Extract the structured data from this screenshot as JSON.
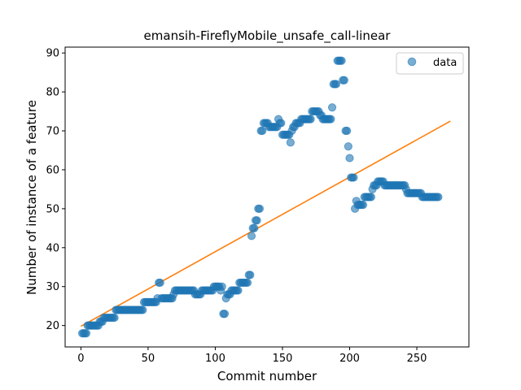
{
  "chart_data": {
    "type": "scatter",
    "title": "emansih-FireflyMobile_unsafe_call-linear",
    "xlabel": "Commit number",
    "ylabel": "Number of instance of a feature",
    "xlim": [
      -11.75,
      288.75
    ],
    "ylim": [
      14.5,
      91.5
    ],
    "xticks": [
      0,
      50,
      100,
      150,
      200,
      250
    ],
    "yticks": [
      20,
      30,
      40,
      50,
      60,
      70,
      80,
      90
    ],
    "grid": false,
    "legend": {
      "placement": "top-right",
      "entries": [
        "data"
      ]
    },
    "colors": {
      "scatter": "#1f77b4",
      "fit": "#ff7f0e"
    },
    "series": [
      {
        "name": "data",
        "kind": "scatter",
        "points": [
          [
            1,
            18
          ],
          [
            2,
            18
          ],
          [
            3,
            18
          ],
          [
            4,
            18
          ],
          [
            5,
            20
          ],
          [
            6,
            20
          ],
          [
            7,
            20
          ],
          [
            8,
            20
          ],
          [
            9,
            20
          ],
          [
            10,
            20
          ],
          [
            11,
            20
          ],
          [
            12,
            20
          ],
          [
            13,
            20
          ],
          [
            14,
            21
          ],
          [
            15,
            21
          ],
          [
            16,
            21
          ],
          [
            17,
            22
          ],
          [
            18,
            22
          ],
          [
            19,
            22
          ],
          [
            20,
            22
          ],
          [
            21,
            22
          ],
          [
            22,
            22
          ],
          [
            23,
            22
          ],
          [
            24,
            22
          ],
          [
            25,
            22
          ],
          [
            26,
            24
          ],
          [
            27,
            24
          ],
          [
            28,
            24
          ],
          [
            29,
            24
          ],
          [
            30,
            24
          ],
          [
            31,
            24
          ],
          [
            32,
            24
          ],
          [
            33,
            24
          ],
          [
            34,
            24
          ],
          [
            35,
            24
          ],
          [
            36,
            24
          ],
          [
            37,
            24
          ],
          [
            38,
            24
          ],
          [
            39,
            24
          ],
          [
            40,
            24
          ],
          [
            41,
            24
          ],
          [
            42,
            24
          ],
          [
            43,
            24
          ],
          [
            44,
            24
          ],
          [
            45,
            24
          ],
          [
            46,
            24
          ],
          [
            47,
            26
          ],
          [
            48,
            26
          ],
          [
            49,
            26
          ],
          [
            50,
            26
          ],
          [
            51,
            26
          ],
          [
            52,
            26
          ],
          [
            53,
            26
          ],
          [
            54,
            26
          ],
          [
            55,
            26
          ],
          [
            56,
            26
          ],
          [
            57,
            27
          ],
          [
            58,
            31
          ],
          [
            59,
            31
          ],
          [
            60,
            27
          ],
          [
            61,
            27
          ],
          [
            62,
            27
          ],
          [
            63,
            27
          ],
          [
            64,
            27
          ],
          [
            65,
            27
          ],
          [
            66,
            27
          ],
          [
            67,
            27
          ],
          [
            68,
            27
          ],
          [
            69,
            28
          ],
          [
            70,
            29
          ],
          [
            71,
            29
          ],
          [
            72,
            29
          ],
          [
            73,
            29
          ],
          [
            74,
            29
          ],
          [
            75,
            29
          ],
          [
            76,
            29
          ],
          [
            77,
            29
          ],
          [
            78,
            29
          ],
          [
            79,
            29
          ],
          [
            80,
            29
          ],
          [
            81,
            29
          ],
          [
            82,
            29
          ],
          [
            83,
            29
          ],
          [
            84,
            29
          ],
          [
            85,
            28
          ],
          [
            86,
            28
          ],
          [
            87,
            28
          ],
          [
            88,
            28
          ],
          [
            89,
            28
          ],
          [
            90,
            29
          ],
          [
            91,
            29
          ],
          [
            92,
            29
          ],
          [
            93,
            29
          ],
          [
            94,
            29
          ],
          [
            95,
            29
          ],
          [
            96,
            29
          ],
          [
            97,
            29
          ],
          [
            98,
            29
          ],
          [
            99,
            30
          ],
          [
            100,
            30
          ],
          [
            101,
            30
          ],
          [
            102,
            30
          ],
          [
            103,
            30
          ],
          [
            104,
            29
          ],
          [
            105,
            30
          ],
          [
            106,
            23
          ],
          [
            107,
            23
          ],
          [
            108,
            27
          ],
          [
            109,
            28
          ],
          [
            110,
            28
          ],
          [
            111,
            28
          ],
          [
            112,
            29
          ],
          [
            113,
            29
          ],
          [
            114,
            29
          ],
          [
            115,
            29
          ],
          [
            116,
            29
          ],
          [
            117,
            29
          ],
          [
            118,
            31
          ],
          [
            119,
            31
          ],
          [
            120,
            31
          ],
          [
            121,
            31
          ],
          [
            122,
            31
          ],
          [
            123,
            31
          ],
          [
            124,
            31
          ],
          [
            125,
            33
          ],
          [
            126,
            33
          ],
          [
            127,
            43
          ],
          [
            128,
            45
          ],
          [
            129,
            45
          ],
          [
            130,
            47
          ],
          [
            131,
            47
          ],
          [
            132,
            50
          ],
          [
            133,
            50
          ],
          [
            134,
            70
          ],
          [
            135,
            70
          ],
          [
            136,
            72
          ],
          [
            137,
            72
          ],
          [
            138,
            72
          ],
          [
            139,
            72
          ],
          [
            140,
            71
          ],
          [
            141,
            71
          ],
          [
            142,
            71
          ],
          [
            143,
            71
          ],
          [
            144,
            71
          ],
          [
            145,
            71
          ],
          [
            146,
            71
          ],
          [
            147,
            73
          ],
          [
            148,
            72
          ],
          [
            149,
            72
          ],
          [
            150,
            69
          ],
          [
            151,
            69
          ],
          [
            152,
            69
          ],
          [
            153,
            69
          ],
          [
            154,
            69
          ],
          [
            155,
            69
          ],
          [
            156,
            67
          ],
          [
            157,
            70
          ],
          [
            158,
            71
          ],
          [
            159,
            71
          ],
          [
            160,
            72
          ],
          [
            161,
            72
          ],
          [
            162,
            72
          ],
          [
            163,
            72
          ],
          [
            164,
            73
          ],
          [
            165,
            73
          ],
          [
            166,
            73
          ],
          [
            167,
            73
          ],
          [
            168,
            73
          ],
          [
            169,
            73
          ],
          [
            170,
            73
          ],
          [
            171,
            73
          ],
          [
            172,
            75
          ],
          [
            173,
            75
          ],
          [
            174,
            75
          ],
          [
            175,
            75
          ],
          [
            176,
            75
          ],
          [
            177,
            75
          ],
          [
            178,
            74
          ],
          [
            179,
            74
          ],
          [
            180,
            73
          ],
          [
            181,
            73
          ],
          [
            182,
            73
          ],
          [
            183,
            73
          ],
          [
            184,
            73
          ],
          [
            185,
            73
          ],
          [
            186,
            73
          ],
          [
            187,
            76
          ],
          [
            188,
            82
          ],
          [
            189,
            82
          ],
          [
            190,
            82
          ],
          [
            191,
            88
          ],
          [
            192,
            88
          ],
          [
            193,
            88
          ],
          [
            194,
            88
          ],
          [
            195,
            83
          ],
          [
            196,
            83
          ],
          [
            197,
            70
          ],
          [
            198,
            70
          ],
          [
            199,
            66
          ],
          [
            200,
            63
          ],
          [
            201,
            58
          ],
          [
            202,
            58
          ],
          [
            203,
            58
          ],
          [
            204,
            50
          ],
          [
            205,
            52
          ],
          [
            206,
            51
          ],
          [
            207,
            51
          ],
          [
            208,
            51
          ],
          [
            209,
            51
          ],
          [
            210,
            51
          ],
          [
            211,
            53
          ],
          [
            212,
            53
          ],
          [
            213,
            53
          ],
          [
            214,
            53
          ],
          [
            215,
            53
          ],
          [
            216,
            53
          ],
          [
            217,
            55
          ],
          [
            218,
            56
          ],
          [
            219,
            56
          ],
          [
            220,
            56
          ],
          [
            221,
            57
          ],
          [
            222,
            57
          ],
          [
            223,
            57
          ],
          [
            224,
            57
          ],
          [
            225,
            57
          ],
          [
            226,
            56
          ],
          [
            227,
            56
          ],
          [
            228,
            56
          ],
          [
            229,
            56
          ],
          [
            230,
            56
          ],
          [
            231,
            56
          ],
          [
            232,
            56
          ],
          [
            233,
            56
          ],
          [
            234,
            56
          ],
          [
            235,
            56
          ],
          [
            236,
            56
          ],
          [
            237,
            56
          ],
          [
            238,
            56
          ],
          [
            239,
            56
          ],
          [
            240,
            56
          ],
          [
            241,
            56
          ],
          [
            242,
            55
          ],
          [
            243,
            54
          ],
          [
            244,
            54
          ],
          [
            245,
            54
          ],
          [
            246,
            54
          ],
          [
            247,
            54
          ],
          [
            248,
            54
          ],
          [
            249,
            54
          ],
          [
            250,
            54
          ],
          [
            251,
            54
          ],
          [
            252,
            54
          ],
          [
            253,
            54
          ],
          [
            254,
            53
          ],
          [
            255,
            53
          ],
          [
            256,
            53
          ],
          [
            257,
            53
          ],
          [
            258,
            53
          ],
          [
            259,
            53
          ],
          [
            260,
            53
          ],
          [
            261,
            53
          ],
          [
            262,
            53
          ],
          [
            263,
            53
          ],
          [
            264,
            53
          ],
          [
            265,
            53
          ],
          [
            266,
            53
          ]
        ]
      },
      {
        "name": "",
        "kind": "line",
        "points": [
          [
            0,
            19.8
          ],
          [
            275,
            72.5
          ]
        ]
      }
    ]
  }
}
